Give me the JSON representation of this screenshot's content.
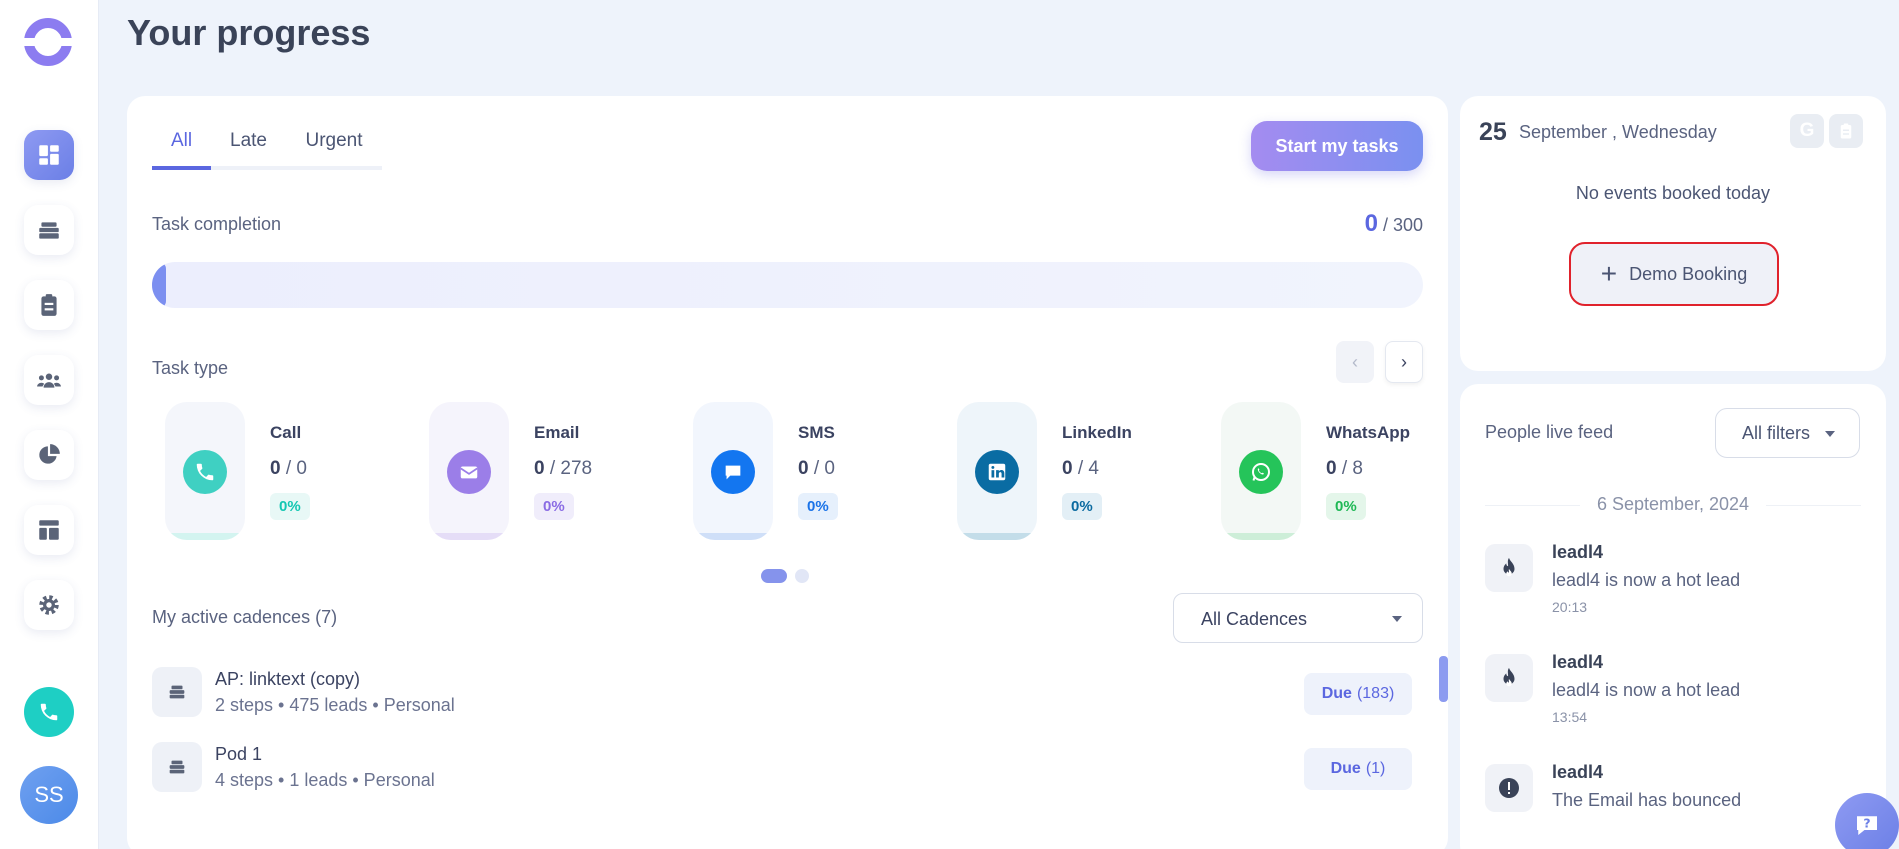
{
  "page": {
    "title": "Your progress"
  },
  "sidebar": {
    "items": [
      {
        "name": "dashboard-icon"
      },
      {
        "name": "cadences-icon"
      },
      {
        "name": "tasks-icon"
      },
      {
        "name": "people-icon"
      },
      {
        "name": "reports-icon"
      },
      {
        "name": "templates-icon"
      },
      {
        "name": "settings-icon"
      }
    ],
    "avatar": "SS"
  },
  "tabs": [
    "All",
    "Late",
    "Urgent"
  ],
  "start_button": "Start my tasks",
  "completion": {
    "label": "Task completion",
    "done": "0",
    "total": "/ 300",
    "progress": 0
  },
  "task_type": {
    "label": "Task type",
    "prev": "‹",
    "next": "›",
    "items": [
      {
        "name": "Call",
        "done": "0",
        "total": "/ 0",
        "pct": "0%",
        "color": "#3fd0c2",
        "bg": "#f4f6fb",
        "bar": "#d3f4f0",
        "pct_color": "#14c7b2",
        "pct_bg": "#e8f8f6"
      },
      {
        "name": "Email",
        "done": "0",
        "total": "/ 278",
        "pct": "0%",
        "color": "#9b7ee8",
        "bg": "#f5f4fc",
        "bar": "#e5ddf7",
        "pct_color": "#8a6ce4",
        "pct_bg": "#f0edfb"
      },
      {
        "name": "SMS",
        "done": "0",
        "total": "/ 0",
        "pct": "0%",
        "color": "#1376f0",
        "bg": "#f2f6fd",
        "bar": "#cfdff8",
        "pct_color": "#1a73e8",
        "pct_bg": "#e6f0fc"
      },
      {
        "name": "LinkedIn",
        "done": "0",
        "total": "/ 4",
        "pct": "0%",
        "color": "#0a6ca3",
        "bg": "#eef5fa",
        "bar": "#c3dde9",
        "pct_color": "#0b6aa0",
        "pct_bg": "#e3eff6"
      },
      {
        "name": "WhatsApp",
        "done": "0",
        "total": "/ 8",
        "pct": "0%",
        "color": "#25c45a",
        "bg": "#f3f8f5",
        "bar": "#cdeed8",
        "pct_color": "#1fb855",
        "pct_bg": "#e4f6ea"
      }
    ]
  },
  "cadences": {
    "label": "My active cadences (7)",
    "filter": "All Cadences",
    "rows": [
      {
        "title": "AP: linktext (copy)",
        "meta": "2 steps • 475 leads • Personal",
        "due_label": "Due",
        "due_count": "(183)"
      },
      {
        "title": "Pod 1",
        "meta": "4 steps • 1 leads • Personal",
        "due_label": "Due",
        "due_count": "(1)"
      }
    ]
  },
  "calendar": {
    "day": "25",
    "month": "September , Wednesday",
    "google": "G",
    "no_events": "No events booked today",
    "demo_button": "Demo Booking"
  },
  "feed": {
    "title": "People live feed",
    "filter": "All filters",
    "date": "6 September, 2024",
    "items": [
      {
        "icon": "fire-icon",
        "name": "leadl4",
        "text": "leadl4 is now a hot lead",
        "time": "20:13"
      },
      {
        "icon": "fire-icon",
        "name": "leadl4",
        "text": "leadl4 is now a hot lead",
        "time": "13:54"
      },
      {
        "icon": "alert-icon",
        "name": "leadl4",
        "text": "The Email has bounced",
        "time": ""
      }
    ]
  },
  "colors": {
    "accent": "#5b67e0",
    "highlight_border": "#e0222c"
  }
}
